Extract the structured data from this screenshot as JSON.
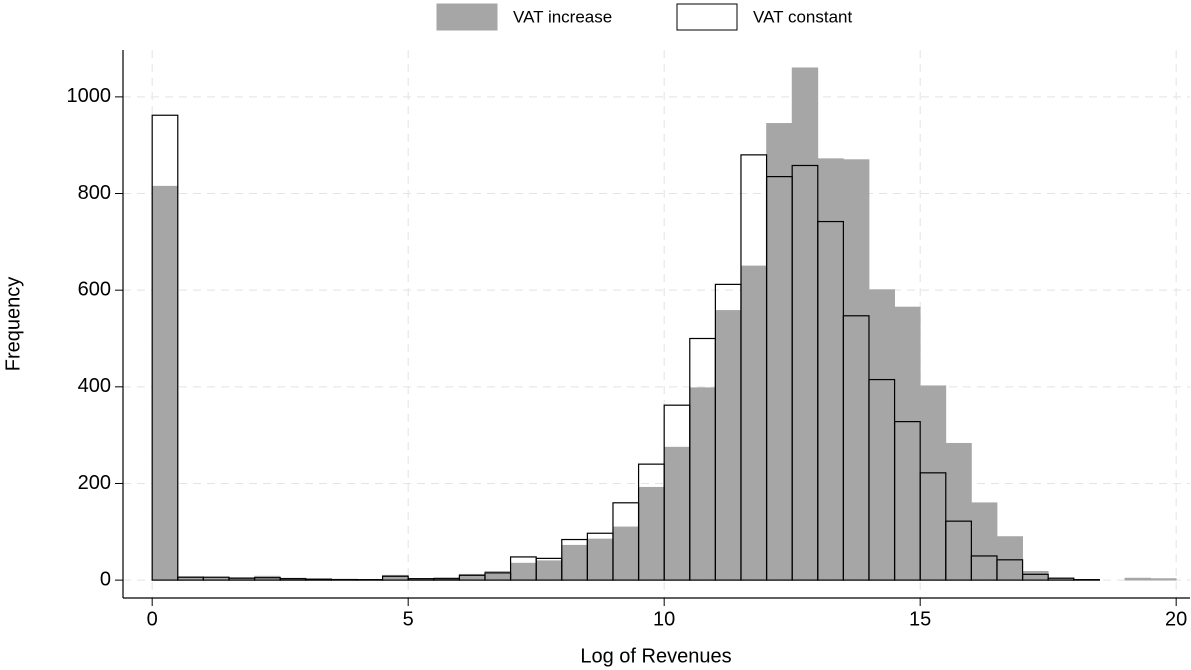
{
  "chart_data": {
    "type": "histogram",
    "x_label": "Log of Revenues",
    "y_label": "Frequency",
    "bins": [
      0,
      0.5,
      1,
      1.5,
      2,
      2.5,
      3,
      3.5,
      4,
      4.5,
      5,
      5.5,
      6,
      6.5,
      7,
      7.5,
      8,
      8.5,
      9,
      9.5,
      10,
      10.5,
      11,
      11.5,
      12,
      12.5,
      13,
      13.5,
      14,
      14.5,
      15,
      15.5,
      16,
      16.5,
      17,
      17.5,
      18,
      18.5,
      19,
      19.5,
      20
    ],
    "series": [
      {
        "name": "VAT increase",
        "color": "#a6a6a6",
        "values": [
          815,
          7,
          5,
          5,
          8,
          4,
          2,
          2,
          1,
          10,
          3,
          5,
          12,
          18,
          35,
          40,
          72,
          85,
          110,
          192,
          275,
          398,
          558,
          650,
          945,
          1060,
          872,
          870,
          601,
          565,
          402,
          283,
          160,
          90,
          18,
          4,
          1,
          0,
          4,
          3
        ]
      },
      {
        "name": "VAT constant",
        "color": "#ffffff",
        "values": [
          962,
          6,
          6,
          4,
          5,
          3,
          2,
          1,
          1,
          8,
          3,
          3,
          10,
          15,
          48,
          45,
          84,
          97,
          160,
          240,
          362,
          500,
          612,
          880,
          835,
          858,
          742,
          547,
          415,
          328,
          222,
          122,
          50,
          42,
          12,
          4,
          1,
          0,
          0,
          0
        ]
      }
    ],
    "xlim": [
      -0.57,
      20.27
    ],
    "xticks": [
      0,
      5,
      10,
      15,
      20
    ],
    "ylim": [
      -37,
      1097
    ],
    "yticks": [
      0,
      200,
      400,
      600,
      800,
      1000
    ],
    "grid": true,
    "legend": "top"
  }
}
